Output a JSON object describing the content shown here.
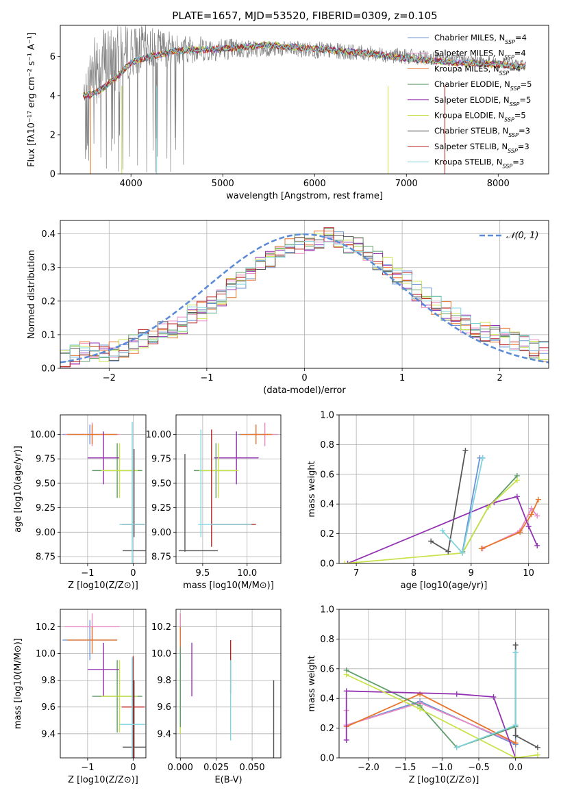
{
  "figure_title": "PLATE=1657, MJD=53520, FIBERID=0309, z=0.105",
  "legend_spectrum": [
    {
      "name": "Chabrier MILES, N",
      "sub": "SSP",
      "suffix": "=4",
      "color": "#6b93d6"
    },
    {
      "name": "Salpeter MILES, N",
      "sub": "SSP",
      "suffix": "=4",
      "color": "#e98bc4"
    },
    {
      "name": "Kroupa MILES, N",
      "sub": "SSP",
      "suffix": "=4",
      "color": "#e8762b"
    },
    {
      "name": "Chabrier ELODIE, N",
      "sub": "SSP",
      "suffix": "=5",
      "color": "#5f9e6a"
    },
    {
      "name": "Salpeter ELODIE, N",
      "sub": "SSP",
      "suffix": "=5",
      "color": "#9333b2"
    },
    {
      "name": "Kroupa ELODIE, N",
      "sub": "SSP",
      "suffix": "=5",
      "color": "#c8e34a"
    },
    {
      "name": "Chabrier STELIB, N",
      "sub": "SSP",
      "suffix": "=3",
      "color": "#555555"
    },
    {
      "name": "Salpeter STELIB, N",
      "sub": "SSP",
      "suffix": "=3",
      "color": "#b82020"
    },
    {
      "name": "Kroupa STELIB, N",
      "sub": "SSP",
      "suffix": "=3",
      "color": "#7fd3dd"
    }
  ],
  "legend_hist": "𝒩(0, 1)",
  "chart_data": [
    {
      "id": "spectrum",
      "type": "line",
      "xlabel": "wavelength [Angstrom, rest frame]",
      "ylabel": "Flux [fλ10⁻¹⁷ erg cm⁻² s⁻¹ A⁻¹]",
      "xlim": [
        3230,
        8550
      ],
      "ylim": [
        0,
        7.6
      ],
      "xticks": [
        4000,
        5000,
        6000,
        7000,
        8000
      ],
      "yticks": [
        0,
        2,
        4,
        6
      ],
      "data_gray_envelope": {
        "x": [
          3480,
          3600,
          3700,
          3800,
          3900,
          4000,
          4200,
          4500,
          5000,
          5500,
          6000,
          6500,
          7000,
          7500,
          8000,
          8300
        ],
        "low": [
          3.7,
          3.5,
          3.8,
          4.2,
          4.2,
          5.0,
          5.3,
          5.6,
          5.8,
          6.0,
          5.9,
          5.8,
          5.6,
          5.5,
          5.4,
          5.4
        ],
        "high": [
          4.4,
          7.6,
          7.6,
          7.6,
          7.6,
          7.6,
          7.6,
          7.2,
          7.0,
          6.8,
          6.8,
          6.6,
          6.4,
          6.2,
          6.0,
          5.8
        ]
      },
      "model_continuum": {
        "x": [
          3480,
          3600,
          3700,
          3800,
          3900,
          4000,
          4200,
          4500,
          5000,
          5500,
          6000,
          6500,
          7000,
          7500,
          8000,
          8300
        ],
        "y": [
          4.0,
          4.1,
          4.4,
          4.8,
          5.2,
          5.7,
          6.0,
          6.3,
          6.4,
          6.6,
          6.4,
          6.2,
          5.9,
          5.7,
          5.6,
          5.5
        ]
      }
    },
    {
      "id": "residual_hist",
      "type": "histogram",
      "xlabel": "(data-model)/error",
      "ylabel": "Normed distribution",
      "xlim": [
        -2.5,
        2.5
      ],
      "ylim": [
        0,
        0.44
      ],
      "xticks": [
        -2,
        -1,
        0,
        1,
        2
      ],
      "yticks": [
        0.0,
        0.1,
        0.2,
        0.3,
        0.4
      ],
      "bin_width": 0.1,
      "bin_start": -2.5,
      "series_values": [
        0.03,
        0.04,
        0.05,
        0.05,
        0.04,
        0.05,
        0.06,
        0.07,
        0.09,
        0.1,
        0.11,
        0.12,
        0.13,
        0.16,
        0.17,
        0.19,
        0.21,
        0.24,
        0.26,
        0.28,
        0.3,
        0.32,
        0.34,
        0.36,
        0.37,
        0.38,
        0.38,
        0.39,
        0.38,
        0.37,
        0.36,
        0.34,
        0.32,
        0.3,
        0.28,
        0.26,
        0.23,
        0.21,
        0.19,
        0.17,
        0.15,
        0.13,
        0.12,
        0.11,
        0.1,
        0.09,
        0.08,
        0.07,
        0.06,
        0.05
      ],
      "normal_curve": {
        "name": "𝒩(0, 1)",
        "mu": 0,
        "sigma": 1,
        "color": "#5b8ad6"
      }
    },
    {
      "id": "Z_vs_age",
      "type": "errorbar",
      "xlabel": "Z [log10(Z/Z⊙)]",
      "ylabel": "age [log10(age/yr)]",
      "xlim": [
        -1.6,
        0.28
      ],
      "ylim": [
        8.68,
        10.2
      ],
      "xticks": [
        -1,
        0
      ],
      "yticks": [
        8.75,
        9.0,
        9.25,
        9.5,
        9.75,
        10.0
      ],
      "points": [
        {
          "x": -0.95,
          "y": 10.0,
          "xerr": 0.6,
          "yerr": 0.1,
          "color": "#6b93d6"
        },
        {
          "x": -0.9,
          "y": 10.0,
          "xerr": 0.6,
          "yerr": 0.12,
          "color": "#e98bc4"
        },
        {
          "x": -0.9,
          "y": 10.0,
          "xerr": 0.55,
          "yerr": 0.1,
          "color": "#e8762b"
        },
        {
          "x": -0.35,
          "y": 9.63,
          "xerr": 0.55,
          "yerr": 0.28,
          "color": "#5f9e6a"
        },
        {
          "x": -0.65,
          "y": 9.76,
          "xerr": 0.35,
          "yerr": 0.27,
          "color": "#9333b2"
        },
        {
          "x": -0.3,
          "y": 9.63,
          "xerr": 0.4,
          "yerr": 0.28,
          "color": "#c8e34a"
        },
        {
          "x": 0.02,
          "y": 8.81,
          "xerr": 0.25,
          "yerr": 0.0,
          "color": "#555555"
        },
        {
          "x": 0.02,
          "y": 9.4,
          "xerr": 0.0,
          "yerr": 0.45,
          "color": "#555555"
        },
        {
          "x": 0.0,
          "y": 9.08,
          "xerr": 0.25,
          "yerr": 0.0,
          "color": "#b82020"
        },
        {
          "x": -0.02,
          "y": 9.08,
          "xerr": 0.28,
          "yerr": 1.05,
          "color": "#7fd3dd"
        }
      ]
    },
    {
      "id": "mass_vs_age",
      "type": "errorbar",
      "xlabel": "mass [log10(M/M⊙)]",
      "ylabel": "",
      "xlim": [
        9.2,
        10.38
      ],
      "ylim": [
        8.68,
        10.2
      ],
      "xticks": [
        9.5,
        10.0
      ],
      "yticks": [
        8.75,
        9.0,
        9.25,
        9.5,
        9.75,
        10.0
      ],
      "points": [
        {
          "x": 10.1,
          "y": 10.0,
          "xerr": 0.2,
          "yerr": 0.1,
          "color": "#6b93d6"
        },
        {
          "x": 10.2,
          "y": 10.0,
          "xerr": 0.15,
          "yerr": 0.12,
          "color": "#e98bc4"
        },
        {
          "x": 10.1,
          "y": 10.0,
          "xerr": 0.18,
          "yerr": 0.1,
          "color": "#e8762b"
        },
        {
          "x": 9.65,
          "y": 9.63,
          "xerr": 0.25,
          "yerr": 0.28,
          "color": "#5f9e6a"
        },
        {
          "x": 9.88,
          "y": 9.76,
          "xerr": 0.25,
          "yerr": 0.27,
          "color": "#9333b2"
        },
        {
          "x": 9.68,
          "y": 9.63,
          "xerr": 0.22,
          "yerr": 0.28,
          "color": "#c8e34a"
        },
        {
          "x": 9.45,
          "y": 8.81,
          "xerr": 0.22,
          "yerr": 0.0,
          "color": "#555555"
        },
        {
          "x": 9.3,
          "y": 9.3,
          "xerr": 0.0,
          "yerr": 0.5,
          "color": "#555555"
        },
        {
          "x": 9.85,
          "y": 9.08,
          "xerr": 0.25,
          "yerr": 0.0,
          "color": "#b82020"
        },
        {
          "x": 9.6,
          "y": 9.45,
          "xerr": 0.0,
          "yerr": 0.6,
          "color": "#b82020"
        },
        {
          "x": 9.75,
          "y": 9.08,
          "xerr": 0.3,
          "yerr": 0.0,
          "color": "#7fd3dd"
        },
        {
          "x": 9.48,
          "y": 9.5,
          "xerr": 0.0,
          "yerr": 0.55,
          "color": "#7fd3dd"
        }
      ]
    },
    {
      "id": "age_vs_weight",
      "type": "line",
      "xlabel": "age  [log10(age/yr)]",
      "ylabel": "mass weight",
      "xlim": [
        6.7,
        10.35
      ],
      "ylim": [
        0,
        1.0
      ],
      "xticks": [
        7,
        8,
        9,
        10
      ],
      "yticks": [
        0.0,
        0.2,
        0.4,
        0.6,
        0.8,
        1.0
      ],
      "series": [
        {
          "color": "#6b93d6",
          "x": [
            8.85,
            9.15,
            9.2
          ],
          "y": [
            0.08,
            0.71,
            0.71
          ]
        },
        {
          "color": "#e98bc4",
          "x": [
            9.2,
            9.85,
            10.05,
            10.15
          ],
          "y": [
            0.1,
            0.22,
            0.37,
            0.32
          ]
        },
        {
          "color": "#e8762b",
          "x": [
            9.18,
            9.85,
            10.05,
            10.17
          ],
          "y": [
            0.1,
            0.21,
            0.33,
            0.43
          ]
        },
        {
          "color": "#5f9e6a",
          "x": [
            8.85,
            9.3,
            9.8
          ],
          "y": [
            0.07,
            0.38,
            0.59
          ]
        },
        {
          "color": "#9333b2",
          "x": [
            6.85,
            9.4,
            9.8,
            10.0,
            10.15
          ],
          "y": [
            0.0,
            0.41,
            0.45,
            0.25,
            0.12
          ]
        },
        {
          "color": "#c8e34a",
          "x": [
            6.8,
            8.85,
            9.3,
            9.8
          ],
          "y": [
            0.0,
            0.07,
            0.38,
            0.56
          ]
        },
        {
          "color": "#555555",
          "x": [
            8.3,
            8.6,
            8.9
          ],
          "y": [
            0.15,
            0.08,
            0.76
          ]
        },
        {
          "color": "#7fd3dd",
          "x": [
            8.5,
            8.85,
            9.2
          ],
          "y": [
            0.22,
            0.07,
            0.71
          ]
        }
      ]
    },
    {
      "id": "Z_vs_mass",
      "type": "errorbar",
      "xlabel": "Z [log10(Z/Z⊙)]",
      "ylabel": "mass [log10(M/M⊙)]",
      "xlim": [
        -1.6,
        0.28
      ],
      "ylim": [
        9.22,
        10.33
      ],
      "xticks": [
        -1,
        0
      ],
      "yticks": [
        9.4,
        9.6,
        9.8,
        10.0,
        10.2
      ],
      "points": [
        {
          "x": -0.95,
          "y": 10.1,
          "xerr": 0.6,
          "yerr": 0.15,
          "color": "#6b93d6"
        },
        {
          "x": -0.9,
          "y": 10.2,
          "xerr": 0.6,
          "yerr": 0.1,
          "color": "#e98bc4"
        },
        {
          "x": -0.9,
          "y": 10.1,
          "xerr": 0.55,
          "yerr": 0.1,
          "color": "#e8762b"
        },
        {
          "x": -0.35,
          "y": 9.68,
          "xerr": 0.55,
          "yerr": 0.27,
          "color": "#5f9e6a"
        },
        {
          "x": -0.65,
          "y": 9.88,
          "xerr": 0.35,
          "yerr": 0.2,
          "color": "#9333b2"
        },
        {
          "x": -0.3,
          "y": 9.68,
          "xerr": 0.4,
          "yerr": 0.27,
          "color": "#c8e34a"
        },
        {
          "x": 0.02,
          "y": 9.3,
          "xerr": 0.25,
          "yerr": 0.5,
          "color": "#555555"
        },
        {
          "x": 0.0,
          "y": 9.6,
          "xerr": 0.25,
          "yerr": 0.38,
          "color": "#b82020"
        },
        {
          "x": -0.02,
          "y": 9.47,
          "xerr": 0.28,
          "yerr": 0.5,
          "color": "#7fd3dd"
        }
      ]
    },
    {
      "id": "EBV_vs_mass",
      "type": "errorbar",
      "xlabel": "E(B-V)",
      "ylabel": "",
      "xlim": [
        -0.003,
        0.07
      ],
      "ylim": [
        9.22,
        10.33
      ],
      "xticks": [
        0.0,
        0.025,
        0.05
      ],
      "xticklabels": [
        "0.000",
        "0.025",
        "0.050"
      ],
      "yticks": [
        9.4,
        9.6,
        9.8,
        10.0,
        10.2
      ],
      "points": [
        {
          "x": 0.0,
          "y": 10.2,
          "xerr": 0,
          "yerr": 0.1,
          "color": "#e98bc4"
        },
        {
          "x": 0.0,
          "y": 10.1,
          "xerr": 0,
          "yerr": 0.1,
          "color": "#e8762b"
        },
        {
          "x": 0.0,
          "y": 9.65,
          "xerr": 0,
          "yerr": 0.25,
          "color": "#c8e34a"
        },
        {
          "x": 0.0,
          "y": 9.75,
          "xerr": 0,
          "yerr": 0.3,
          "color": "#5f9e6a"
        },
        {
          "x": 0.008,
          "y": 9.88,
          "xerr": 0,
          "yerr": 0.2,
          "color": "#9333b2"
        },
        {
          "x": 0.035,
          "y": 9.9,
          "xerr": 0,
          "yerr": 0.2,
          "color": "#b82020"
        },
        {
          "x": 0.035,
          "y": 9.65,
          "xerr": 0,
          "yerr": 0.3,
          "color": "#7fd3dd"
        },
        {
          "x": 0.065,
          "y": 9.45,
          "xerr": 0,
          "yerr": 0.35,
          "color": "#555555"
        }
      ]
    },
    {
      "id": "Z_vs_weight",
      "type": "line",
      "xlabel": "Z [log10(Z/Z⊙)]",
      "ylabel": "mass weight",
      "xlim": [
        -2.4,
        0.45
      ],
      "ylim": [
        0,
        1.0
      ],
      "xticks": [
        -2.0,
        -1.5,
        -1.0,
        -0.5,
        0.0
      ],
      "yticks": [
        0.0,
        0.2,
        0.4,
        0.6,
        0.8,
        1.0
      ],
      "series": [
        {
          "color": "#6b93d6",
          "x": [
            -2.3,
            -1.3,
            0.0,
            0.0
          ],
          "y": [
            0.22,
            0.38,
            0.09,
            0.71
          ]
        },
        {
          "color": "#e98bc4",
          "x": [
            -2.3,
            -2.3,
            -1.3,
            0.0
          ],
          "y": [
            0.32,
            0.22,
            0.37,
            0.1
          ]
        },
        {
          "color": "#e8762b",
          "x": [
            -2.3,
            -1.3,
            0.0
          ],
          "y": [
            0.21,
            0.43,
            0.1
          ]
        },
        {
          "color": "#5f9e6a",
          "x": [
            -2.3,
            -1.3,
            -0.8,
            0.0
          ],
          "y": [
            0.59,
            0.35,
            0.07,
            0.21
          ]
        },
        {
          "color": "#9333b2",
          "x": [
            -2.3,
            -2.3,
            -0.8,
            -0.3,
            0.0
          ],
          "y": [
            0.12,
            0.45,
            0.43,
            0.41,
            0.0
          ]
        },
        {
          "color": "#c8e34a",
          "x": [
            -2.3,
            -1.3,
            0.0,
            0.3
          ],
          "y": [
            0.56,
            0.33,
            0.0,
            0.02
          ]
        },
        {
          "color": "#555555",
          "x": [
            0.0,
            0.0,
            0.3
          ],
          "y": [
            0.76,
            0.15,
            0.07
          ]
        },
        {
          "color": "#7fd3dd",
          "x": [
            -0.8,
            0.0,
            0.0
          ],
          "y": [
            0.07,
            0.22,
            0.71
          ]
        }
      ]
    }
  ]
}
